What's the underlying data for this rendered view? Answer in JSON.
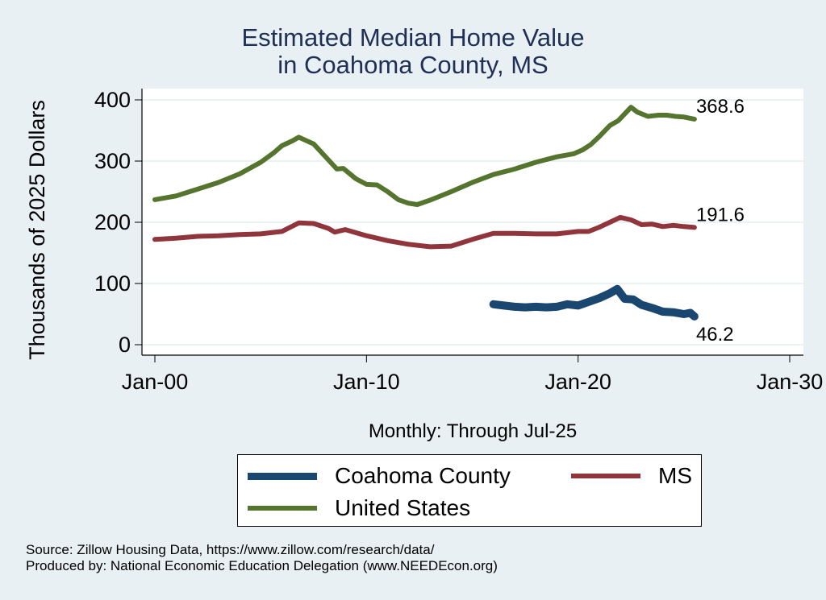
{
  "chart_data": {
    "type": "line",
    "title": "Estimated Median Home Value",
    "subtitle": "in Coahoma County, MS",
    "xlabel": "Monthly: Through Jul-25",
    "ylabel": "Thousands of 2025 Dollars",
    "xlim": [
      2000.0,
      2030.0
    ],
    "ylim": [
      0,
      400
    ],
    "x_ticks": [
      {
        "value": 2000,
        "label": "Jan-00"
      },
      {
        "value": 2010,
        "label": "Jan-10"
      },
      {
        "value": 2020,
        "label": "Jan-20"
      },
      {
        "value": 2030,
        "label": "Jan-30"
      }
    ],
    "y_ticks": [
      {
        "value": 0,
        "label": "0"
      },
      {
        "value": 100,
        "label": "100"
      },
      {
        "value": 200,
        "label": "200"
      },
      {
        "value": 300,
        "label": "300"
      },
      {
        "value": 400,
        "label": "400"
      }
    ],
    "grid": true,
    "legend_position": "bottom",
    "series": [
      {
        "name": "Coahoma County",
        "color": "#1a476f",
        "end_label": "46.2",
        "x": [
          2016.0,
          2016.5,
          2017.0,
          2017.5,
          2018.0,
          2018.5,
          2019.0,
          2019.5,
          2020.0,
          2020.5,
          2021.0,
          2021.5,
          2021.85,
          2022.2,
          2022.6,
          2023.0,
          2023.5,
          2024.0,
          2024.5,
          2025.0,
          2025.3,
          2025.5
        ],
        "values": [
          66,
          64,
          62,
          61,
          62,
          61,
          62,
          66,
          64,
          70,
          76,
          84,
          91,
          75,
          74,
          65,
          60,
          54,
          53,
          50,
          52,
          46.2
        ]
      },
      {
        "name": "MS",
        "color": "#90353b",
        "end_label": "191.6",
        "x": [
          2000.0,
          2001.0,
          2002.0,
          2003.0,
          2004.0,
          2005.0,
          2006.0,
          2006.8,
          2007.5,
          2008.2,
          2008.5,
          2009.0,
          2010.0,
          2011.0,
          2012.0,
          2013.0,
          2014.0,
          2015.0,
          2016.0,
          2017.0,
          2018.0,
          2019.0,
          2020.0,
          2020.5,
          2021.0,
          2021.5,
          2022.0,
          2022.5,
          2023.0,
          2023.5,
          2024.0,
          2024.5,
          2025.0,
          2025.5
        ],
        "values": [
          172,
          174,
          177,
          178,
          180,
          181,
          185,
          199,
          198,
          190,
          184,
          188,
          178,
          170,
          164,
          160,
          161,
          172,
          182,
          182,
          181,
          181,
          185,
          185,
          192,
          200,
          208,
          204,
          196,
          197,
          193,
          195,
          193,
          191.6
        ]
      },
      {
        "name": "United States",
        "color": "#55752f",
        "end_label": "368.6",
        "x": [
          2000.0,
          2001.0,
          2002.0,
          2003.0,
          2004.0,
          2005.0,
          2005.6,
          2006.0,
          2006.5,
          2006.8,
          2007.5,
          2008.2,
          2008.6,
          2008.9,
          2009.5,
          2010.0,
          2010.5,
          2011.0,
          2011.5,
          2012.0,
          2012.4,
          2013.0,
          2014.0,
          2015.0,
          2016.0,
          2017.0,
          2018.0,
          2019.0,
          2019.8,
          2020.2,
          2020.6,
          2021.0,
          2021.5,
          2021.9,
          2022.5,
          2022.8,
          2023.3,
          2023.8,
          2024.2,
          2024.6,
          2025.0,
          2025.5
        ],
        "values": [
          237,
          243,
          254,
          265,
          279,
          298,
          313,
          325,
          333,
          339,
          328,
          302,
          287,
          288,
          271,
          262,
          261,
          250,
          237,
          231,
          229,
          236,
          250,
          265,
          278,
          287,
          298,
          307,
          312,
          318,
          327,
          340,
          358,
          366,
          388,
          380,
          373,
          375,
          375,
          373,
          372,
          368.6
        ]
      }
    ]
  },
  "legend": {
    "items": [
      {
        "label": "Coahoma County",
        "color": "#1a476f"
      },
      {
        "label": "MS",
        "color": "#90353b"
      },
      {
        "label": "United States",
        "color": "#55752f"
      }
    ]
  },
  "footer": {
    "source": "Source: Zillow Housing Data, https://www.zillow.com/research/data/",
    "produced_by": "Produced by: National Economic Education Delegation (www.NEEDEcon.org)"
  }
}
